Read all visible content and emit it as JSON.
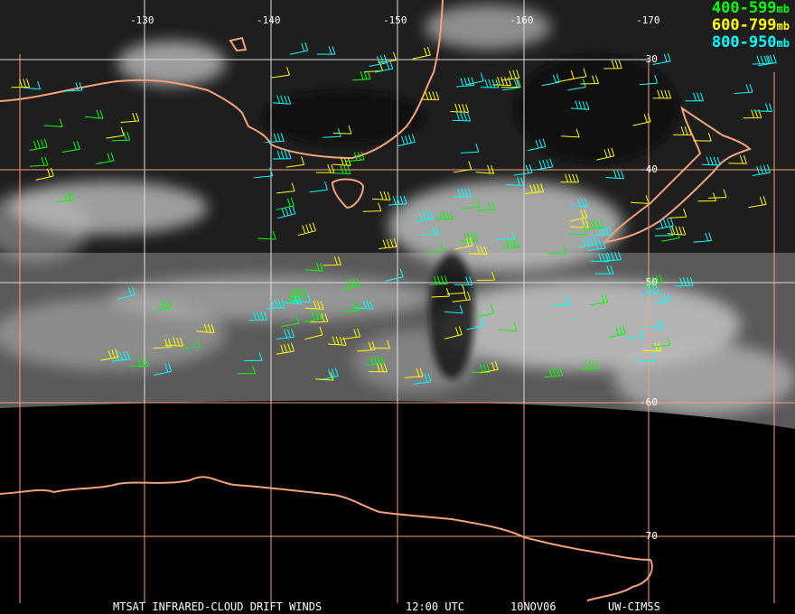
{
  "map": {
    "longitude_labels": [
      "-130",
      "-140",
      "-150",
      "-160",
      "-170"
    ],
    "latitude_labels": [
      "-30",
      "-40",
      "-50",
      "-60",
      "-70"
    ],
    "coastline_color": "#f5a27a",
    "grid_color_land": "#f5a27a",
    "grid_color_sea": "#ffffff"
  },
  "legend": [
    {
      "range": "400-599",
      "unit": "mb",
      "color": "#00ff00"
    },
    {
      "range": "600-799",
      "unit": "mb",
      "color": "#ffff00"
    },
    {
      "range": "800-950",
      "unit": "mb",
      "color": "#00ffff"
    }
  ],
  "footer": {
    "product": "MTSAT INFRARED-CLOUD DRIFT WINDS",
    "time": "12:00 UTC",
    "date": "10NOV06",
    "source": "UW-CIMSS"
  }
}
